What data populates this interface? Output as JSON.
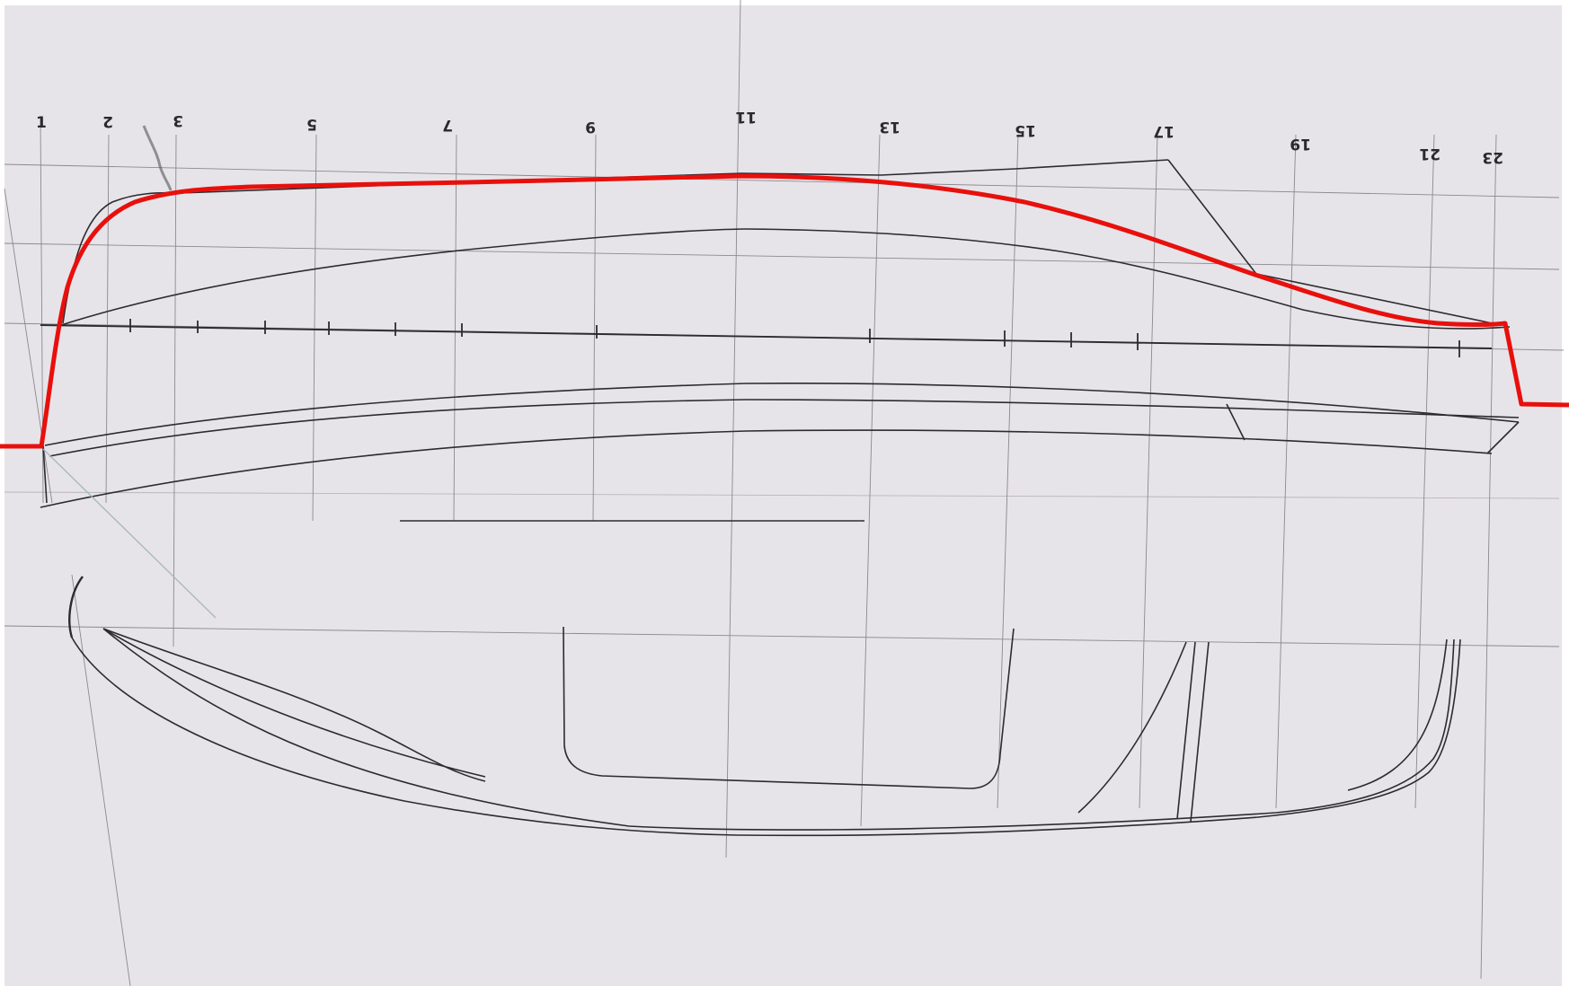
{
  "drawing": {
    "station_labels": [
      {
        "id": "st-1",
        "text": "1",
        "rotate": false
      },
      {
        "id": "st-2",
        "text": "2",
        "rotate": true
      },
      {
        "id": "st-3",
        "text": "3",
        "rotate": true
      },
      {
        "id": "st-5",
        "text": "5",
        "rotate": true
      },
      {
        "id": "st-7",
        "text": "7",
        "rotate": true
      },
      {
        "id": "st-9",
        "text": "9",
        "rotate": true
      },
      {
        "id": "st-11",
        "text": "11",
        "rotate": true
      },
      {
        "id": "st-13",
        "text": "13",
        "rotate": true
      },
      {
        "id": "st-15",
        "text": "15",
        "rotate": true
      },
      {
        "id": "st-17",
        "text": "17",
        "rotate": true
      },
      {
        "id": "st-19",
        "text": "19",
        "rotate": true
      },
      {
        "id": "st-21",
        "text": "21",
        "rotate": true
      },
      {
        "id": "st-23",
        "text": "23",
        "rotate": true
      }
    ],
    "colors": {
      "paper": "#e7e4e9",
      "pencil": "#2b2b30",
      "highlight": "#e8100c",
      "light_line": "#a9b8c2"
    }
  }
}
